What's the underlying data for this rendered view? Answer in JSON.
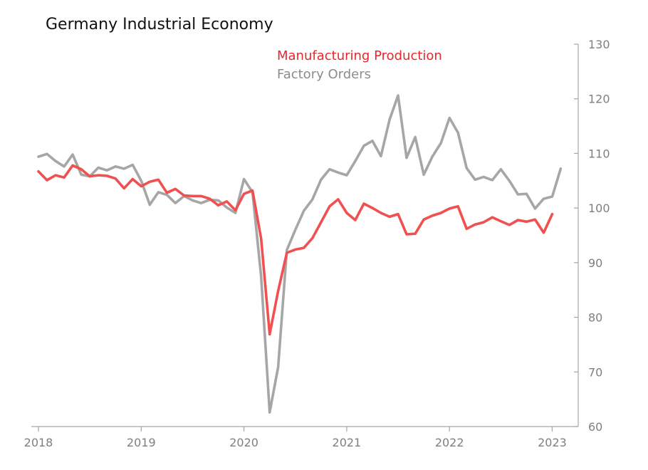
{
  "chart_data": {
    "type": "line",
    "title": "Germany Industrial Economy",
    "xlabel": "",
    "ylabel": "",
    "ylim": [
      60,
      130
    ],
    "yticks": [
      60,
      70,
      80,
      90,
      100,
      110,
      120,
      130
    ],
    "y_axis_side": "right",
    "xlim": [
      2018.0,
      2023.17
    ],
    "xticks": [
      2018,
      2019,
      2020,
      2021,
      2022,
      2023
    ],
    "legend_position": "top-center",
    "series": [
      {
        "name": "Manufacturing Production",
        "color": "#f05050",
        "x": [
          2018.0,
          2018.083,
          2018.167,
          2018.25,
          2018.333,
          2018.417,
          2018.5,
          2018.583,
          2018.667,
          2018.75,
          2018.833,
          2018.917,
          2019.0,
          2019.083,
          2019.167,
          2019.25,
          2019.333,
          2019.417,
          2019.5,
          2019.583,
          2019.667,
          2019.75,
          2019.833,
          2019.917,
          2020.0,
          2020.083,
          2020.167,
          2020.25,
          2020.333,
          2020.417,
          2020.5,
          2020.583,
          2020.667,
          2020.75,
          2020.833,
          2020.917,
          2021.0,
          2021.083,
          2021.167,
          2021.25,
          2021.333,
          2021.417,
          2021.5,
          2021.583,
          2021.667,
          2021.75,
          2021.833,
          2021.917,
          2022.0,
          2022.083,
          2022.167,
          2022.25,
          2022.333,
          2022.417,
          2022.5,
          2022.583,
          2022.667,
          2022.75,
          2022.833,
          2022.917,
          2023.0
        ],
        "values": [
          106.7,
          105.1,
          106.0,
          105.6,
          107.8,
          107.1,
          105.8,
          106.0,
          105.9,
          105.4,
          103.6,
          105.3,
          104.0,
          104.8,
          105.2,
          102.8,
          103.5,
          102.3,
          102.2,
          102.2,
          101.7,
          100.5,
          101.2,
          99.6,
          102.6,
          103.2,
          94.4,
          76.9,
          84.8,
          91.8,
          92.4,
          92.7,
          94.5,
          97.4,
          100.3,
          101.6,
          99.1,
          97.8,
          100.8,
          100.0,
          99.1,
          98.4,
          98.9,
          95.2,
          95.3,
          97.9,
          98.6,
          99.1,
          99.9,
          100.3,
          96.2,
          97.0,
          97.4,
          98.3,
          97.6,
          96.9,
          97.8,
          97.5,
          97.9,
          95.5,
          98.9
        ]
      },
      {
        "name": "Factory Orders",
        "color": "#a6a6a6",
        "x": [
          2018.0,
          2018.083,
          2018.167,
          2018.25,
          2018.333,
          2018.417,
          2018.5,
          2018.583,
          2018.667,
          2018.75,
          2018.833,
          2018.917,
          2019.0,
          2019.083,
          2019.167,
          2019.25,
          2019.333,
          2019.417,
          2019.5,
          2019.583,
          2019.667,
          2019.75,
          2019.833,
          2019.917,
          2020.0,
          2020.083,
          2020.167,
          2020.25,
          2020.333,
          2020.417,
          2020.5,
          2020.583,
          2020.667,
          2020.75,
          2020.833,
          2020.917,
          2021.0,
          2021.083,
          2021.167,
          2021.25,
          2021.333,
          2021.417,
          2021.5,
          2021.583,
          2021.667,
          2021.75,
          2021.833,
          2021.917,
          2022.0,
          2022.083,
          2022.167,
          2022.25,
          2022.333,
          2022.417,
          2022.5,
          2022.583,
          2022.667,
          2022.75,
          2022.833,
          2022.917,
          2023.0,
          2023.083
        ],
        "values": [
          109.4,
          109.9,
          108.6,
          107.6,
          109.8,
          106.1,
          105.8,
          107.4,
          106.9,
          107.6,
          107.2,
          107.9,
          105.0,
          100.6,
          102.9,
          102.4,
          100.9,
          102.2,
          101.4,
          100.9,
          101.5,
          101.4,
          100.1,
          99.1,
          105.3,
          102.9,
          87.5,
          62.6,
          70.9,
          92.3,
          96.0,
          99.5,
          101.6,
          105.2,
          107.1,
          106.5,
          106.0,
          108.6,
          111.4,
          112.3,
          109.5,
          116.2,
          120.6,
          109.2,
          113.0,
          106.1,
          109.4,
          111.9,
          116.5,
          113.8,
          107.3,
          105.2,
          105.7,
          105.1,
          107.1,
          105.0,
          102.5,
          102.6,
          99.9,
          101.7,
          102.1,
          107.2
        ]
      }
    ]
  }
}
